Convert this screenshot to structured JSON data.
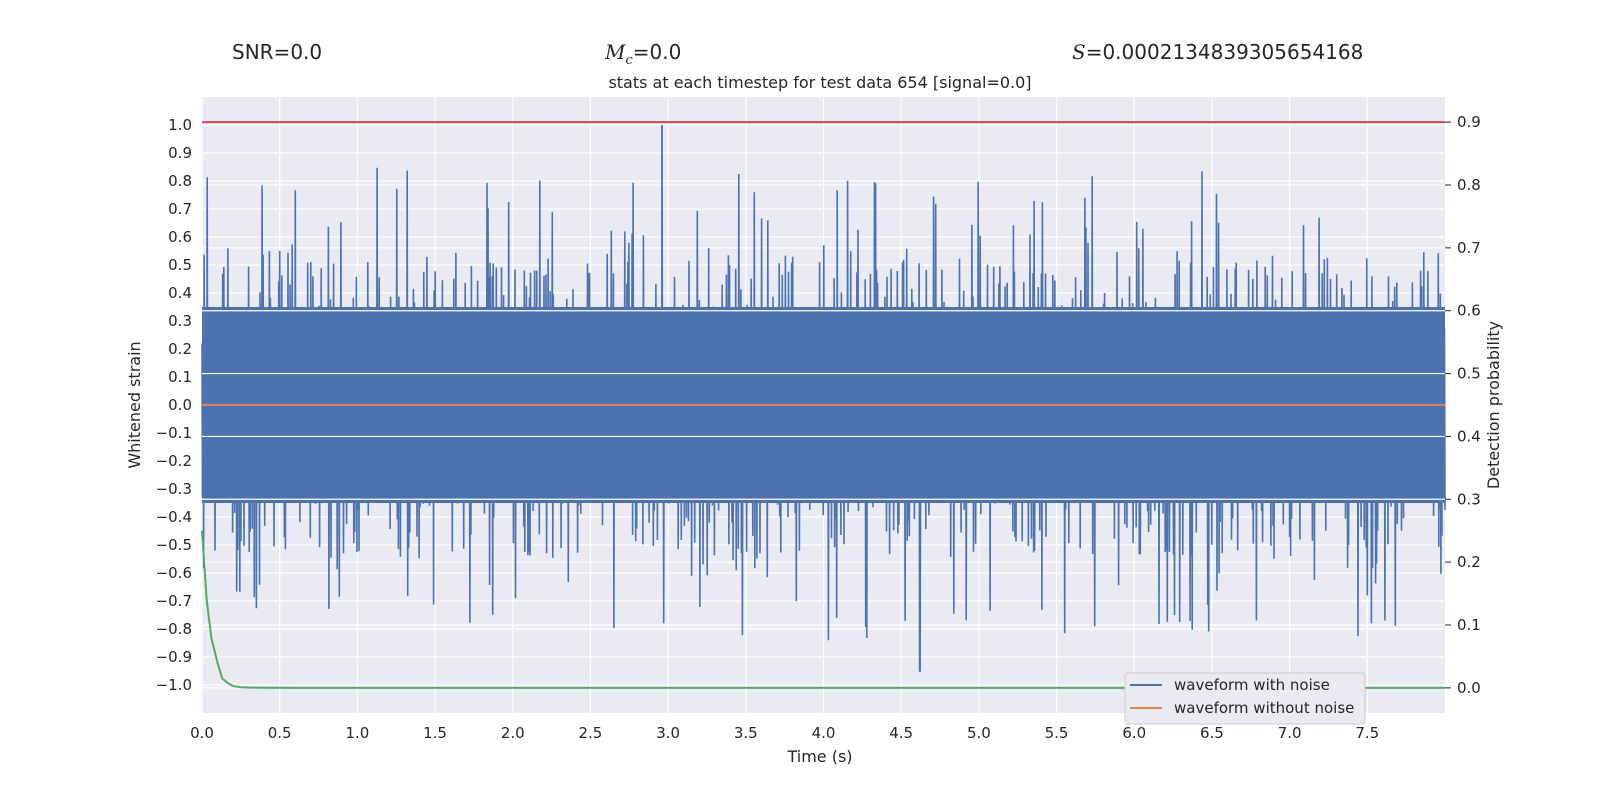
{
  "stats": {
    "snr_label": "SNR=",
    "snr": "0.0",
    "mc_symbol": "M",
    "mc_sub": "c",
    "mc_value": "=0.0",
    "s_symbol": "S",
    "s_value": "=0.0002134839305654168"
  },
  "chart_data": {
    "type": "line",
    "title": "stats at each timestep for test data 654 [signal=0.0]",
    "xlabel": "Time (s)",
    "ylabel_left": "Whitened strain",
    "ylabel_right": "Detection probability",
    "xlim": [
      0.0,
      8.0
    ],
    "ylim_left": [
      -1.1,
      1.1
    ],
    "ylim_right": [
      -0.04,
      0.94
    ],
    "x_ticks": [
      "0.0",
      "0.5",
      "1.0",
      "1.5",
      "2.0",
      "2.5",
      "3.0",
      "3.5",
      "4.0",
      "4.5",
      "5.0",
      "5.5",
      "6.0",
      "6.5",
      "7.0",
      "7.5"
    ],
    "y_left_ticks": [
      "1.0",
      "0.9",
      "0.8",
      "0.7",
      "0.6",
      "0.5",
      "0.4",
      "0.3",
      "0.2",
      "0.1",
      "0.0",
      "−0.1",
      "−0.2",
      "−0.3",
      "−0.4",
      "−0.5",
      "−0.6",
      "−0.7",
      "−0.8",
      "−0.9",
      "−1.0"
    ],
    "y_right_ticks": [
      "0.9",
      "0.8",
      "0.7",
      "0.6",
      "0.5",
      "0.4",
      "0.3",
      "0.2",
      "0.1",
      "0.0"
    ],
    "legend": [
      "waveform with noise",
      "waveform without noise"
    ],
    "legend_position": "bottom-right",
    "colors": {
      "noise": "#4c72b0",
      "clean": "#dd8452",
      "probability": "#55a868",
      "threshold": "#c44e52",
      "plot_bg": "#eaeaf2",
      "grid": "#ffffff"
    },
    "series": [
      {
        "name": "waveform with noise",
        "axis": "left",
        "note": "dense whitened noise, normalized to peak 1.0; envelope approx ±0.35 with spikes",
        "core_amplitude": 0.35,
        "max": 1.0,
        "min": -0.95,
        "max_at_x": 2.96,
        "min_at_x": 4.62
      },
      {
        "name": "waveform without noise",
        "axis": "left",
        "x": [
          0.0,
          8.0
        ],
        "y": [
          0.0,
          0.0
        ]
      },
      {
        "name": "detection probability",
        "axis": "right",
        "x": [
          0.0,
          0.03,
          0.06,
          0.1,
          0.13,
          0.17,
          0.2,
          0.25,
          0.3,
          0.4,
          0.6,
          1.0,
          2.0,
          4.0,
          6.0,
          8.0
        ],
        "y": [
          0.25,
          0.14,
          0.08,
          0.04,
          0.015,
          0.007,
          0.003,
          0.001,
          0.0005,
          0.0002,
          0.0,
          0.0,
          0.0,
          0.0,
          0.0,
          0.0
        ]
      },
      {
        "name": "threshold",
        "axis": "right",
        "x": [
          0.0,
          8.0
        ],
        "y": [
          0.9,
          0.9
        ]
      }
    ]
  }
}
